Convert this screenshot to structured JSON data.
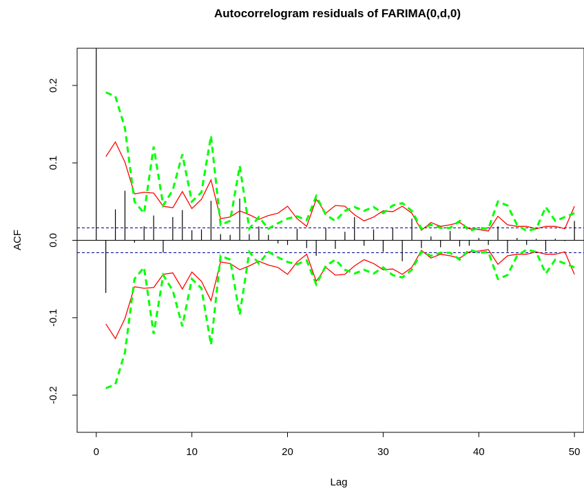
{
  "chart_data": {
    "type": "line",
    "title": "Autocorrelogram residuals of FARIMA(0,d,0)",
    "xlabel": "Lag",
    "ylabel": "ACF",
    "xlim": [
      -2,
      51
    ],
    "ylim": [
      -0.248,
      0.248
    ],
    "x_ticks": [
      0,
      10,
      20,
      30,
      40,
      50
    ],
    "y_ticks": [
      -0.2,
      -0.1,
      0.0,
      0.1,
      0.2
    ],
    "x_tick_labels": [
      "0",
      "10",
      "20",
      "30",
      "40",
      "50"
    ],
    "y_tick_labels": [
      "-0.2",
      "-0.1",
      "0.0",
      "0.1",
      "0.2"
    ],
    "ci_level": 0.016,
    "colors": {
      "acf": "#000000",
      "ci": "#00008b",
      "red": "#ff0000",
      "green": "#00ff00"
    },
    "acf": {
      "lags": [
        0,
        1,
        2,
        3,
        4,
        5,
        6,
        7,
        8,
        9,
        10,
        11,
        12,
        13,
        14,
        15,
        16,
        17,
        18,
        19,
        20,
        21,
        22,
        23,
        24,
        25,
        26,
        27,
        28,
        29,
        30,
        31,
        32,
        33,
        34,
        35,
        36,
        37,
        38,
        39,
        40,
        41,
        42,
        43,
        44,
        45,
        46,
        47,
        48,
        49,
        50
      ],
      "values": [
        0.248,
        -0.068,
        0.04,
        0.064,
        -0.003,
        0.018,
        0.032,
        -0.016,
        0.03,
        0.039,
        0.013,
        0.014,
        0.051,
        0.008,
        0.007,
        0.054,
        0.008,
        0.018,
        0.007,
        -0.004,
        -0.006,
        0.015,
        -0.01,
        -0.02,
        0.016,
        -0.011,
        0.011,
        0.03,
        -0.007,
        0.014,
        -0.015,
        0.016,
        -0.027,
        0.028,
        -0.01,
        0.005,
        -0.009,
        0.012,
        -0.008,
        -0.007,
        0.003,
        -0.006,
        0.018,
        -0.015,
        0.003,
        -0.006,
        0.002,
        -0.014,
        0.002,
        -0.001,
        0.025
      ]
    },
    "series": [
      {
        "color": "#ff0000",
        "style": "solid",
        "x": [
          1,
          2,
          3,
          4,
          5,
          6,
          7,
          8,
          9,
          10,
          11,
          12,
          13,
          14,
          15,
          16,
          17,
          18,
          19,
          20,
          21,
          22,
          23,
          24,
          25,
          26,
          27,
          28,
          29,
          30,
          31,
          32,
          33,
          34,
          35,
          36,
          37,
          38,
          39,
          40,
          41,
          42,
          43,
          44,
          45,
          46,
          47,
          48,
          49,
          50
        ],
        "upper": [
          0.108,
          0.127,
          0.101,
          0.06,
          0.062,
          0.061,
          0.044,
          0.042,
          0.063,
          0.041,
          0.053,
          0.078,
          0.028,
          0.03,
          0.038,
          0.033,
          0.027,
          0.032,
          0.035,
          0.044,
          0.028,
          0.018,
          0.053,
          0.035,
          0.045,
          0.044,
          0.033,
          0.025,
          0.03,
          0.038,
          0.037,
          0.044,
          0.035,
          0.013,
          0.023,
          0.018,
          0.02,
          0.023,
          0.015,
          0.014,
          0.012,
          0.031,
          0.02,
          0.018,
          0.018,
          0.015,
          0.018,
          0.018,
          0.015,
          0.044
        ]
      },
      {
        "color": "#00ff00",
        "style": "dashed",
        "x": [
          1,
          2,
          3,
          4,
          5,
          6,
          7,
          8,
          9,
          10,
          11,
          12,
          13,
          14,
          15,
          16,
          17,
          18,
          19,
          20,
          21,
          22,
          23,
          24,
          25,
          26,
          27,
          28,
          29,
          30,
          31,
          32,
          33,
          34,
          35,
          36,
          37,
          38,
          39,
          40,
          41,
          42,
          43,
          44,
          45,
          46,
          47,
          48,
          49,
          50
        ],
        "upper": [
          0.191,
          0.186,
          0.145,
          0.05,
          0.035,
          0.121,
          0.045,
          0.065,
          0.111,
          0.05,
          0.062,
          0.135,
          0.02,
          0.025,
          0.096,
          0.015,
          0.03,
          0.015,
          0.022,
          0.028,
          0.031,
          0.026,
          0.057,
          0.033,
          0.025,
          0.038,
          0.043,
          0.038,
          0.043,
          0.035,
          0.045,
          0.048,
          0.038,
          0.015,
          0.02,
          0.016,
          0.016,
          0.025,
          0.012,
          0.016,
          0.015,
          0.05,
          0.045,
          0.02,
          0.012,
          0.015,
          0.043,
          0.025,
          0.03,
          0.035
        ]
      }
    ]
  }
}
